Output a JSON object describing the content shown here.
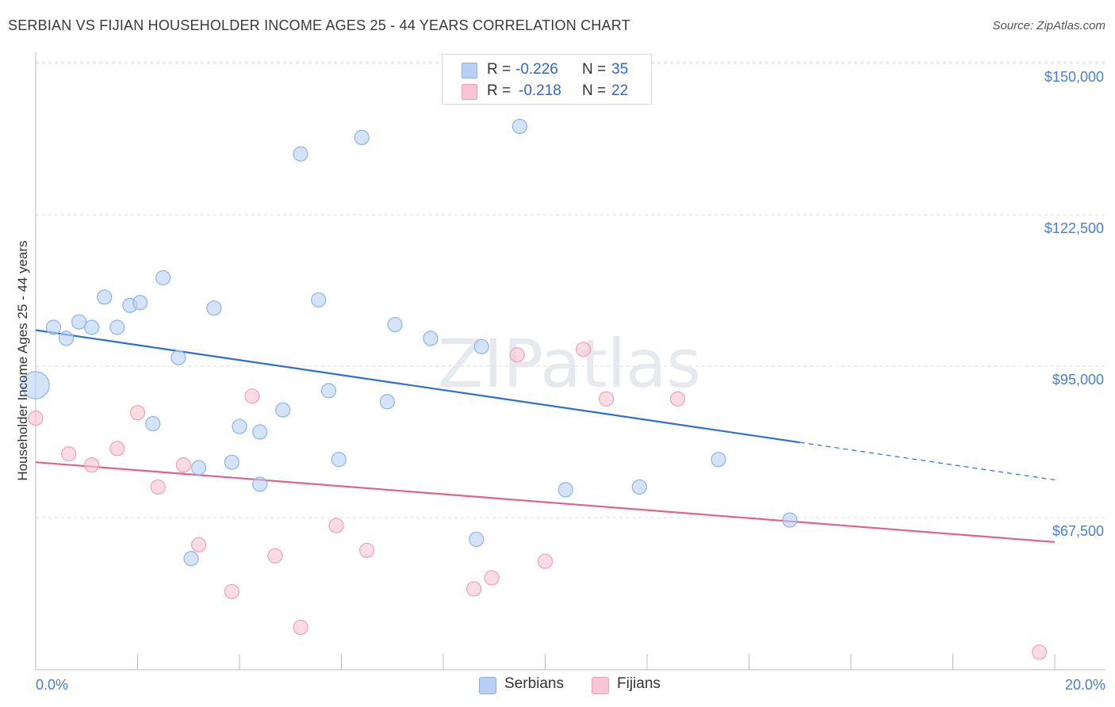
{
  "header": {
    "title": "SERBIAN VS FIJIAN HOUSEHOLDER INCOME AGES 25 - 44 YEARS CORRELATION CHART",
    "source": "Source: ZipAtlas.com"
  },
  "legend": {
    "rows": [
      {
        "r_label": "R =",
        "r_value": "-0.226",
        "n_label": "N =",
        "n_value": "35"
      },
      {
        "r_label": "R =",
        "r_value": "-0.218",
        "n_label": "N =",
        "n_value": "22"
      }
    ],
    "bottom": [
      "Serbians",
      "Fijians"
    ]
  },
  "colors": {
    "serbian_fill": "#b8d0f3",
    "serbian_stroke": "#8fb3e8",
    "serbian_line": "#2f6fcf",
    "fijian_fill": "#f8c5d4",
    "fijian_stroke": "#efa1ba",
    "fijian_line": "#e0628f",
    "tick_text": "#4a7fd1",
    "grid": "#dddddd"
  },
  "watermark": "ZIPatlas",
  "chart_data": {
    "type": "scatter",
    "title": "SERBIAN VS FIJIAN HOUSEHOLDER INCOME AGES 25 - 44 YEARS CORRELATION CHART",
    "xlabel": "",
    "ylabel": "Householder Income Ages 25 - 44 years",
    "xlim": [
      0,
      20
    ],
    "ylim": [
      40000,
      152500
    ],
    "x_ticks": [
      0,
      2,
      4,
      6,
      8,
      10,
      12,
      14,
      16,
      18,
      20
    ],
    "x_tick_labels": {
      "0": "0.0%",
      "20": "20.0%"
    },
    "y_ticks": [
      67500,
      95000,
      122500,
      150000
    ],
    "y_tick_labels": [
      "$67,500",
      "$95,000",
      "$122,500",
      "$150,000"
    ],
    "grid": true,
    "legend_position": "top-center",
    "series": [
      {
        "name": "Serbians",
        "points": [
          {
            "x": 0.0,
            "y": 94000,
            "s": 3
          },
          {
            "x": 0.35,
            "y": 104500
          },
          {
            "x": 0.6,
            "y": 102500
          },
          {
            "x": 0.85,
            "y": 105500
          },
          {
            "x": 1.1,
            "y": 104500
          },
          {
            "x": 1.35,
            "y": 110000
          },
          {
            "x": 1.6,
            "y": 104500
          },
          {
            "x": 1.85,
            "y": 108500
          },
          {
            "x": 2.05,
            "y": 109000
          },
          {
            "x": 2.3,
            "y": 87000
          },
          {
            "x": 2.5,
            "y": 113500
          },
          {
            "x": 2.8,
            "y": 99000
          },
          {
            "x": 3.05,
            "y": 62500
          },
          {
            "x": 3.2,
            "y": 79000
          },
          {
            "x": 3.5,
            "y": 108000
          },
          {
            "x": 3.85,
            "y": 80000
          },
          {
            "x": 4.0,
            "y": 86500
          },
          {
            "x": 4.4,
            "y": 76000
          },
          {
            "x": 4.4,
            "y": 85500
          },
          {
            "x": 4.85,
            "y": 89500
          },
          {
            "x": 5.2,
            "y": 136000
          },
          {
            "x": 5.55,
            "y": 109500
          },
          {
            "x": 5.75,
            "y": 93000
          },
          {
            "x": 5.95,
            "y": 80500
          },
          {
            "x": 6.4,
            "y": 139000
          },
          {
            "x": 6.9,
            "y": 91000
          },
          {
            "x": 7.05,
            "y": 105000
          },
          {
            "x": 7.75,
            "y": 102500
          },
          {
            "x": 8.65,
            "y": 66000
          },
          {
            "x": 8.75,
            "y": 101000
          },
          {
            "x": 9.5,
            "y": 141000
          },
          {
            "x": 10.4,
            "y": 75000
          },
          {
            "x": 11.85,
            "y": 75500
          },
          {
            "x": 13.4,
            "y": 80500
          },
          {
            "x": 14.8,
            "y": 69500
          }
        ],
        "trend": {
          "x": [
            0,
            15.0,
            20.0
          ],
          "y": [
            104000,
            83600,
            76800
          ],
          "solid_until": 15.0
        }
      },
      {
        "name": "Fijians",
        "points": [
          {
            "x": 0.0,
            "y": 88000
          },
          {
            "x": 0.65,
            "y": 81500
          },
          {
            "x": 1.1,
            "y": 79500
          },
          {
            "x": 1.6,
            "y": 82500
          },
          {
            "x": 2.0,
            "y": 89000
          },
          {
            "x": 2.4,
            "y": 75500
          },
          {
            "x": 2.9,
            "y": 79500
          },
          {
            "x": 3.2,
            "y": 65000
          },
          {
            "x": 3.85,
            "y": 56500
          },
          {
            "x": 4.25,
            "y": 92000
          },
          {
            "x": 4.7,
            "y": 63000
          },
          {
            "x": 5.2,
            "y": 50000
          },
          {
            "x": 5.9,
            "y": 68500
          },
          {
            "x": 6.5,
            "y": 64000
          },
          {
            "x": 8.6,
            "y": 57000
          },
          {
            "x": 8.95,
            "y": 59000
          },
          {
            "x": 9.45,
            "y": 99500
          },
          {
            "x": 10.0,
            "y": 62000
          },
          {
            "x": 10.75,
            "y": 100500
          },
          {
            "x": 11.2,
            "y": 91500
          },
          {
            "x": 12.6,
            "y": 91500
          },
          {
            "x": 19.7,
            "y": 45500
          }
        ],
        "trend": {
          "x": [
            0,
            20.0
          ],
          "y": [
            80000,
            65500
          ],
          "solid_until": 20.0
        }
      }
    ]
  }
}
